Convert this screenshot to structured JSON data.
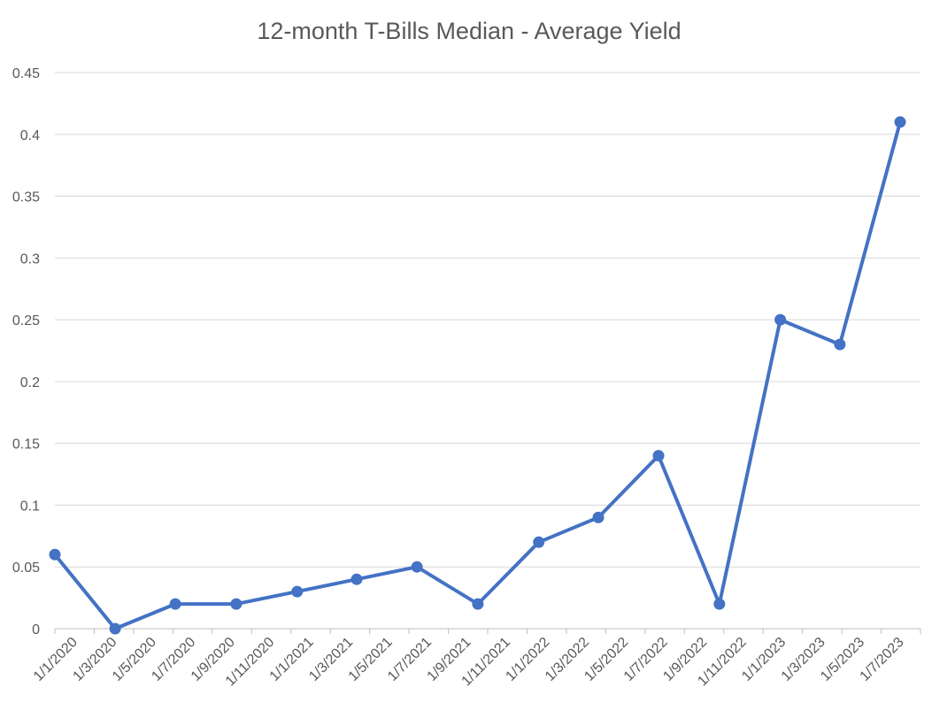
{
  "chart_data": {
    "type": "line",
    "title": "12-month T-Bills Median - Average Yield",
    "xlabel": "",
    "ylabel": "",
    "ylim": [
      0,
      0.45
    ],
    "y_ticks": [
      "0",
      "0.05",
      "0.1",
      "0.15",
      "0.2",
      "0.25",
      "0.3",
      "0.35",
      "0.4",
      "0.45"
    ],
    "x_tick_labels": [
      "1/1/2020",
      "1/3/2020",
      "1/5/2020",
      "1/7/2020",
      "1/9/2020",
      "1/11/2020",
      "1/1/2021",
      "1/3/2021",
      "1/5/2021",
      "1/7/2021",
      "1/9/2021",
      "1/11/2021",
      "1/1/2022",
      "1/3/2022",
      "1/5/2022",
      "1/7/2022",
      "1/9/2022",
      "1/11/2022",
      "1/1/2023",
      "1/3/2023",
      "1/5/2023",
      "1/7/2023"
    ],
    "x_range": [
      "2020-01-01",
      "2023-07-01"
    ],
    "grid": true,
    "legend": "none",
    "series": [
      {
        "color": "#4472C4",
        "x": [
          "2020-01-01",
          "2020-04-01",
          "2020-07-01",
          "2020-10-01",
          "2021-01-01",
          "2021-04-01",
          "2021-07-01",
          "2021-10-01",
          "2022-01-01",
          "2022-04-01",
          "2022-07-01",
          "2022-10-01",
          "2023-01-01",
          "2023-04-01",
          "2023-07-01"
        ],
        "values": [
          0.06,
          0.0,
          0.02,
          0.02,
          0.03,
          0.04,
          0.05,
          0.02,
          0.07,
          0.09,
          0.14,
          0.02,
          0.25,
          0.23,
          0.41
        ]
      }
    ]
  }
}
